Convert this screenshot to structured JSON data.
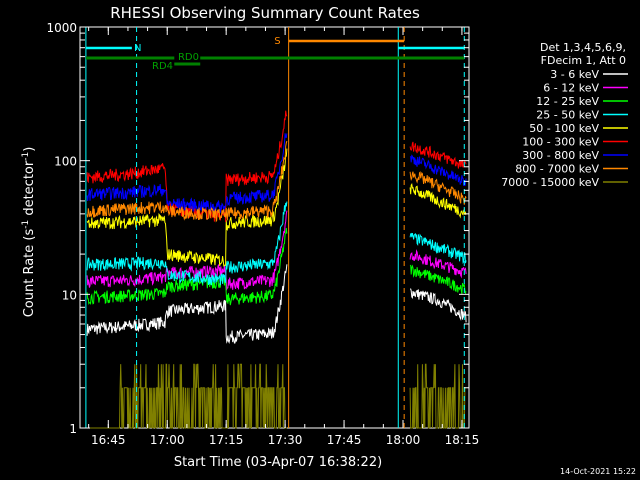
{
  "chart_data": {
    "type": "line",
    "title": "RHESSI Observing Summary Count Rates",
    "xlabel": "Start Time (03-Apr-07 16:38:22)",
    "ylabel_main": "Count Rate (s",
    "ylabel_sup1": "-1",
    "ylabel_mid": " detector",
    "ylabel_sup2": "-1",
    "ylabel_end": ")",
    "yscale": "log",
    "ylim": [
      1,
      1000
    ],
    "xlim_minutes": [
      16.63,
      18.28
    ],
    "x_ticks": [
      "16:45",
      "17:00",
      "17:15",
      "17:30",
      "17:45",
      "18:00",
      "18:15"
    ],
    "x_tick_hours": [
      16.75,
      17.0,
      17.25,
      17.5,
      17.75,
      18.0,
      18.25
    ],
    "y_ticks": [
      "1",
      "10",
      "100",
      "1000"
    ],
    "y_tick_values": [
      1,
      10,
      100,
      1000
    ],
    "legend_header": [
      "Det 1,3,4,5,6,9,",
      "FDecim 1, Att 0"
    ],
    "series": [
      {
        "name": "3 - 6 keV",
        "color": "#ffffff",
        "pre": [
          5.5,
          5.8,
          6.2,
          7.5,
          8.0,
          7.2,
          4.8
        ],
        "post": [
          10.5,
          9.0,
          6.8
        ]
      },
      {
        "name": "6 - 12 keV",
        "color": "#ff00ff",
        "pre": [
          12.5,
          12.8,
          13.5,
          14.5,
          14.8,
          14.0,
          12.0
        ],
        "post": [
          20.0,
          17.0,
          14.5
        ]
      },
      {
        "name": "12 - 25 keV",
        "color": "#00ff00",
        "pre": [
          9.5,
          9.8,
          10.2,
          11.5,
          12.2,
          11.0,
          9.2
        ],
        "post": [
          15.5,
          13.0,
          10.8
        ]
      },
      {
        "name": "25 - 50 keV",
        "color": "#00ffff",
        "pre": [
          16.8,
          17.0,
          17.5,
          14.0,
          13.2,
          12.5,
          16.0
        ],
        "post": [
          27.0,
          22.5,
          18.5
        ]
      },
      {
        "name": "50 - 100 keV",
        "color": "#ffff00",
        "pre": [
          34.0,
          35.0,
          36.0,
          20.0,
          18.5,
          17.5,
          34.0
        ],
        "post": [
          62.0,
          50.0,
          40.0
        ]
      },
      {
        "name": "100 - 300 keV",
        "color": "#ff0000",
        "pre": [
          75.0,
          80.0,
          88.0,
          44.0,
          40.0,
          38.0,
          72.0
        ],
        "post": [
          130.0,
          110.0,
          90.0
        ]
      },
      {
        "name": "300 - 800 keV",
        "color": "#0000ff",
        "pre": [
          56.0,
          58.0,
          61.0,
          48.0,
          46.0,
          44.0,
          52.0
        ],
        "post": [
          105.0,
          85.0,
          68.0
        ]
      },
      {
        "name": "800 - 7000 keV",
        "color": "#ff8800",
        "pre": [
          42.0,
          44.0,
          45.5,
          42.0,
          40.0,
          38.5,
          40.0
        ],
        "post": [
          80.0,
          65.0,
          50.0
        ]
      },
      {
        "name": "7000 - 15000 keV",
        "color": "#808000",
        "pre": [
          1.0,
          2.0,
          1.0,
          1.0,
          1.0,
          1.0,
          1.0
        ],
        "post": [
          2.0,
          1.5,
          1.0
        ]
      }
    ],
    "segments": {
      "night_label": "N",
      "saa_label": "S",
      "rd0_label": "RD0",
      "rd4_label": "RD4"
    }
  },
  "timestamp": "14-Oct-2021 15:22"
}
